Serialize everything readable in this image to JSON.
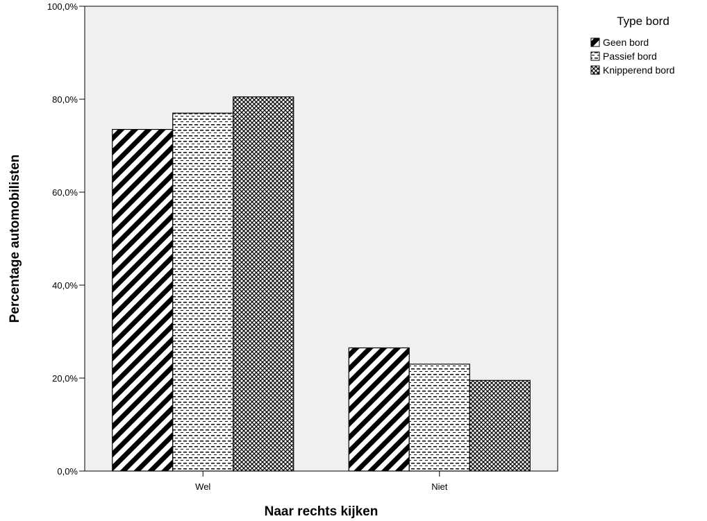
{
  "chart_data": {
    "type": "bar",
    "title": "",
    "xlabel": "Naar rechts kijken",
    "ylabel": "Percentage automobilisten",
    "categories": [
      "Wel",
      "Niet"
    ],
    "ylim": [
      0,
      100
    ],
    "yticks": [
      0,
      20,
      40,
      60,
      80,
      100
    ],
    "ytick_labels": [
      "0,0%",
      "20,0%",
      "40,0%",
      "60,0%",
      "80,0%",
      "100,0%"
    ],
    "grid": false,
    "legend": {
      "title": "Type bord",
      "placement": "outside-top-right"
    },
    "series": [
      {
        "name": "Geen bord",
        "pattern": "diagonal-stripes",
        "values": [
          73.5,
          26.5
        ]
      },
      {
        "name": "Passief bord",
        "pattern": "dashed-horizontal",
        "values": [
          77.0,
          23.0
        ]
      },
      {
        "name": "Knipperend bord",
        "pattern": "crosshatch",
        "values": [
          80.5,
          19.5
        ]
      }
    ],
    "colors": {
      "plot_background": "#f0f0f0",
      "bar_ink": "#000000",
      "bar_base": "#ffffff"
    }
  }
}
